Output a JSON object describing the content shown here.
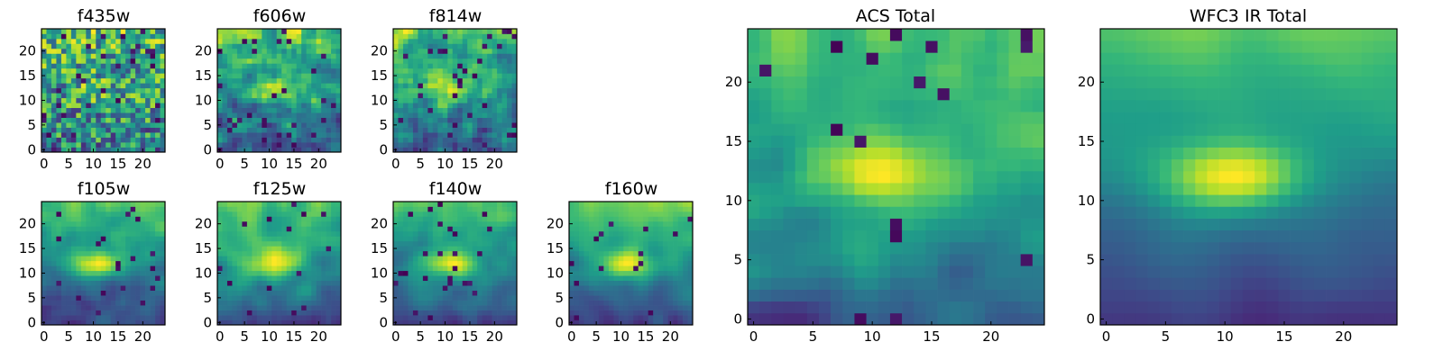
{
  "figure": {
    "description": "Grid of 25x25 pixel heatmap cutouts per filter plus stacked totals"
  },
  "chart_data": [
    {
      "type": "heatmap",
      "title": "f435w",
      "grid_size": [
        25,
        25
      ],
      "xlim": [
        -0.5,
        24.5
      ],
      "ylim": [
        -0.5,
        24.5
      ],
      "x_ticks": [
        0,
        5,
        10,
        15,
        20
      ],
      "y_ticks": [
        0,
        5,
        10,
        15,
        20
      ],
      "colormap": "viridis",
      "seed": 11,
      "smooth": 0.05,
      "blob_strength": 0.15,
      "noise": 0.55,
      "dark_fraction": 0.05
    },
    {
      "type": "heatmap",
      "title": "f606w",
      "grid_size": [
        25,
        25
      ],
      "xlim": [
        -0.5,
        24.5
      ],
      "ylim": [
        -0.5,
        24.5
      ],
      "x_ticks": [
        0,
        5,
        10,
        15,
        20
      ],
      "y_ticks": [
        0,
        5,
        10,
        15,
        20
      ],
      "colormap": "viridis",
      "seed": 23,
      "smooth": 0.1,
      "blob_strength": 0.35,
      "noise": 0.5,
      "dark_fraction": 0.04
    },
    {
      "type": "heatmap",
      "title": "f814w",
      "grid_size": [
        25,
        25
      ],
      "xlim": [
        -0.5,
        24.5
      ],
      "ylim": [
        -0.5,
        24.5
      ],
      "x_ticks": [
        0,
        5,
        10,
        15,
        20
      ],
      "y_ticks": [
        0,
        5,
        10,
        15,
        20
      ],
      "colormap": "viridis",
      "seed": 37,
      "smooth": 0.1,
      "blob_strength": 0.35,
      "noise": 0.5,
      "dark_fraction": 0.05
    },
    {
      "type": "heatmap",
      "title": "f105w",
      "grid_size": [
        25,
        25
      ],
      "xlim": [
        -0.5,
        24.5
      ],
      "ylim": [
        -0.5,
        24.5
      ],
      "x_ticks": [
        0,
        5,
        10,
        15,
        20
      ],
      "y_ticks": [
        0,
        5,
        10,
        15,
        20
      ],
      "colormap": "viridis",
      "seed": 41,
      "smooth": 0.4,
      "blob_strength": 0.45,
      "noise": 0.35,
      "dark_fraction": 0.03
    },
    {
      "type": "heatmap",
      "title": "f125w",
      "grid_size": [
        25,
        25
      ],
      "xlim": [
        -0.5,
        24.5
      ],
      "ylim": [
        -0.5,
        24.5
      ],
      "x_ticks": [
        0,
        5,
        10,
        15,
        20
      ],
      "y_ticks": [
        0,
        5,
        10,
        15,
        20
      ],
      "colormap": "viridis",
      "seed": 53,
      "smooth": 0.4,
      "blob_strength": 0.45,
      "noise": 0.35,
      "dark_fraction": 0.03
    },
    {
      "type": "heatmap",
      "title": "f140w",
      "grid_size": [
        25,
        25
      ],
      "xlim": [
        -0.5,
        24.5
      ],
      "ylim": [
        -0.5,
        24.5
      ],
      "x_ticks": [
        0,
        5,
        10,
        15,
        20
      ],
      "y_ticks": [
        0,
        5,
        10,
        15,
        20
      ],
      "colormap": "viridis",
      "seed": 67,
      "smooth": 0.4,
      "blob_strength": 0.5,
      "noise": 0.35,
      "dark_fraction": 0.03
    },
    {
      "type": "heatmap",
      "title": "f160w",
      "grid_size": [
        25,
        25
      ],
      "xlim": [
        -0.5,
        24.5
      ],
      "ylim": [
        -0.5,
        24.5
      ],
      "x_ticks": [
        0,
        5,
        10,
        15,
        20
      ],
      "y_ticks": [
        0,
        5,
        10,
        15,
        20
      ],
      "colormap": "viridis",
      "seed": 79,
      "smooth": 0.45,
      "blob_strength": 0.45,
      "noise": 0.35,
      "dark_fraction": 0.03
    },
    {
      "type": "heatmap",
      "title": "ACS Total",
      "grid_size": [
        25,
        25
      ],
      "xlim": [
        -0.5,
        24.5
      ],
      "ylim": [
        -0.5,
        24.5
      ],
      "x_ticks": [
        0,
        5,
        10,
        15,
        20
      ],
      "y_ticks": [
        0,
        5,
        10,
        15,
        20
      ],
      "colormap": "viridis",
      "seed": 97,
      "smooth": 0.25,
      "blob_strength": 0.45,
      "noise": 0.4,
      "dark_fraction": 0.03
    },
    {
      "type": "heatmap",
      "title": "WFC3 IR Total",
      "grid_size": [
        25,
        25
      ],
      "xlim": [
        -0.5,
        24.5
      ],
      "ylim": [
        -0.5,
        24.5
      ],
      "x_ticks": [
        0,
        5,
        10,
        15,
        20
      ],
      "y_ticks": [
        0,
        5,
        10,
        15,
        20
      ],
      "colormap": "viridis",
      "seed": 101,
      "smooth": 0.75,
      "blob_strength": 0.55,
      "noise": 0.22,
      "dark_fraction": 0.0
    }
  ]
}
